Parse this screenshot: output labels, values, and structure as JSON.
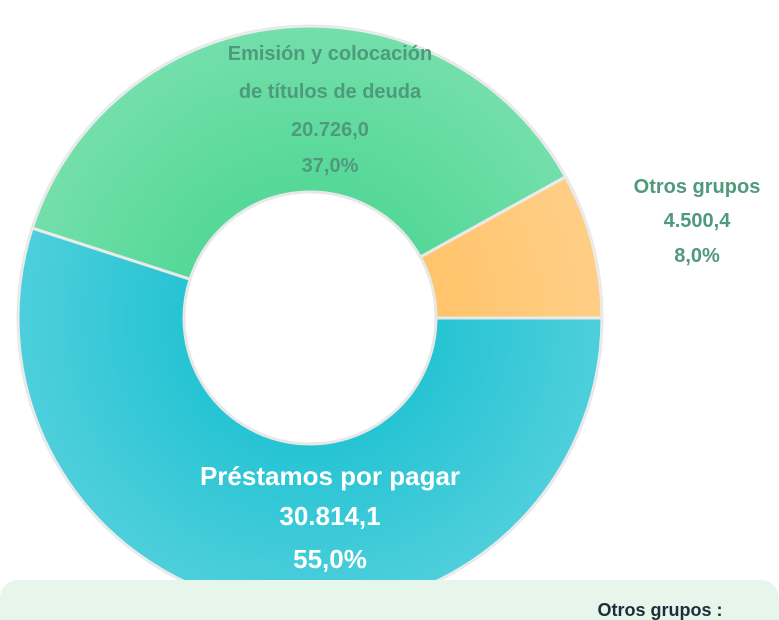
{
  "chart_data": {
    "type": "pie",
    "categories": [
      "Préstamos por pagar",
      "Emisión y colocación de títulos de deuda",
      "Otros grupos"
    ],
    "values": [
      30814.1,
      20726.0,
      4500.4
    ],
    "value_labels": [
      "30.814,1",
      "20.726,0",
      "4.500,4"
    ],
    "percentages": [
      55,
      37,
      8
    ],
    "percentage_labels": [
      "55,0%",
      "37,0%",
      "8,0%"
    ],
    "colors": [
      "#27c4d4",
      "#55d898",
      "#ffc46c"
    ],
    "donut": true,
    "note": "Otros grupos :"
  }
}
